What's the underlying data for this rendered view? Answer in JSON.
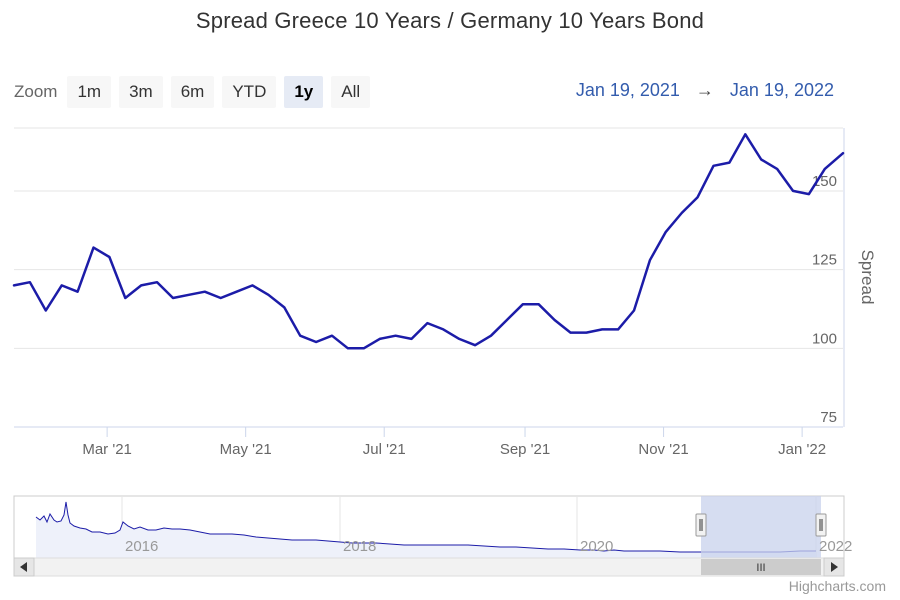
{
  "title": "Spread Greece 10 Years / Germany 10 Years Bond",
  "zoom": {
    "label": "Zoom",
    "buttons": [
      "1m",
      "3m",
      "6m",
      "YTD",
      "1y",
      "All"
    ],
    "active": "1y"
  },
  "range": {
    "from": "Jan 19, 2021",
    "arrow": "→",
    "to": "Jan 19, 2022"
  },
  "credits": "Highcharts.com",
  "colors": {
    "series": "#1c1ca8",
    "navigator_mask": "#c8d2ec",
    "grid": "#e6e6e6"
  },
  "navigator": {
    "year_labels": [
      "2016",
      "2018",
      "2020",
      "2022"
    ],
    "scrollbar_grip": "III"
  },
  "chart_data": {
    "type": "line",
    "title": "Spread Greece 10 Years / Germany 10 Years Bond",
    "ylabel": "Spread",
    "ylim": [
      75,
      170
    ],
    "yticks": [
      75,
      100,
      125,
      150
    ],
    "xlim": [
      "2021-01-19",
      "2022-01-19"
    ],
    "xticks": [
      "Mar '21",
      "May '21",
      "Jul '21",
      "Sep '21",
      "Nov '21",
      "Jan '22"
    ],
    "grid": true,
    "series": [
      {
        "points": [
          [
            "2021-01-19",
            120
          ],
          [
            "2021-01-26",
            121
          ],
          [
            "2021-02-02",
            112
          ],
          [
            "2021-02-09",
            120
          ],
          [
            "2021-02-16",
            118
          ],
          [
            "2021-02-23",
            132
          ],
          [
            "2021-03-02",
            129
          ],
          [
            "2021-03-09",
            116
          ],
          [
            "2021-03-16",
            120
          ],
          [
            "2021-03-23",
            121
          ],
          [
            "2021-03-30",
            116
          ],
          [
            "2021-04-06",
            117
          ],
          [
            "2021-04-13",
            118
          ],
          [
            "2021-04-20",
            116
          ],
          [
            "2021-04-27",
            118
          ],
          [
            "2021-05-04",
            120
          ],
          [
            "2021-05-11",
            117
          ],
          [
            "2021-05-18",
            113
          ],
          [
            "2021-05-25",
            104
          ],
          [
            "2021-06-01",
            102
          ],
          [
            "2021-06-08",
            104
          ],
          [
            "2021-06-15",
            100
          ],
          [
            "2021-06-22",
            100
          ],
          [
            "2021-06-29",
            103
          ],
          [
            "2021-07-06",
            104
          ],
          [
            "2021-07-13",
            103
          ],
          [
            "2021-07-20",
            108
          ],
          [
            "2021-07-27",
            106
          ],
          [
            "2021-08-03",
            103
          ],
          [
            "2021-08-10",
            101
          ],
          [
            "2021-08-17",
            104
          ],
          [
            "2021-08-24",
            109
          ],
          [
            "2021-08-31",
            114
          ],
          [
            "2021-09-07",
            114
          ],
          [
            "2021-09-14",
            109
          ],
          [
            "2021-09-21",
            105
          ],
          [
            "2021-09-28",
            105
          ],
          [
            "2021-10-05",
            106
          ],
          [
            "2021-10-12",
            106
          ],
          [
            "2021-10-19",
            112
          ],
          [
            "2021-10-26",
            128
          ],
          [
            "2021-11-02",
            137
          ],
          [
            "2021-11-09",
            143
          ],
          [
            "2021-11-16",
            148
          ],
          [
            "2021-11-23",
            158
          ],
          [
            "2021-11-30",
            159
          ],
          [
            "2021-12-07",
            168
          ],
          [
            "2021-12-14",
            160
          ],
          [
            "2021-12-21",
            157
          ],
          [
            "2021-12-28",
            150
          ],
          [
            "2022-01-04",
            149
          ],
          [
            "2022-01-11",
            157
          ],
          [
            "2022-01-19",
            162
          ]
        ]
      }
    ]
  }
}
